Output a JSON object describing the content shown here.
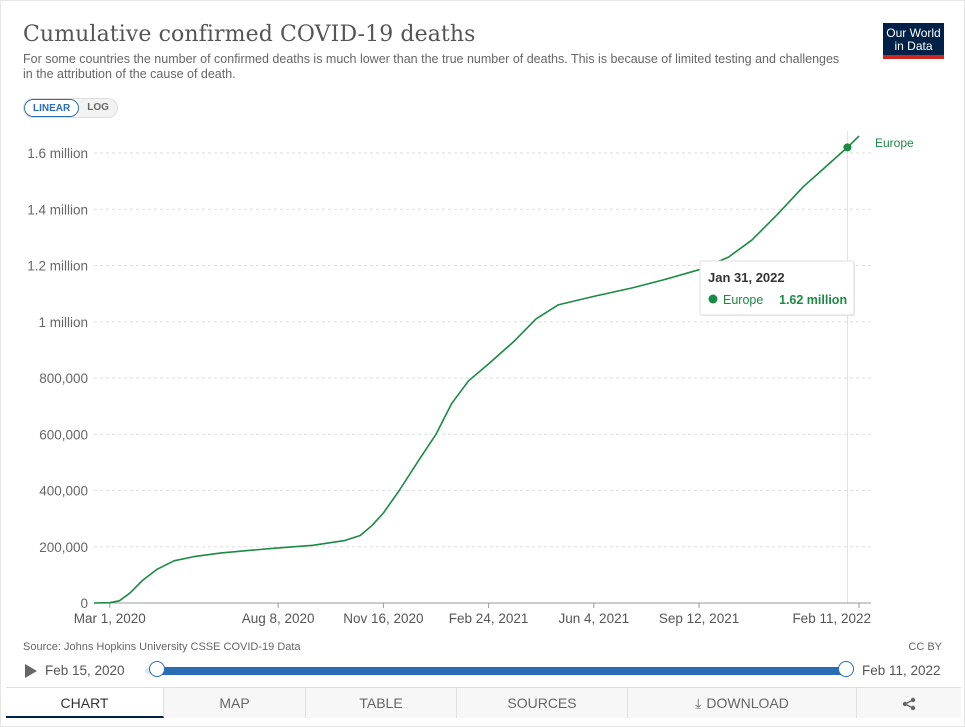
{
  "header": {
    "title": "Cumulative confirmed COVID-19 deaths",
    "subtitle": "For some countries the number of confirmed deaths is much lower than the true number of deaths. This is because of limited testing and challenges in the attribution of the cause of death.",
    "logo_line1": "Our World",
    "logo_line2": "in Data"
  },
  "controls": {
    "linear_label": "LINEAR",
    "log_label": "LOG"
  },
  "chart_data": {
    "type": "line",
    "title": "Cumulative confirmed COVID-19 deaths",
    "ylim": [
      0,
      1650000
    ],
    "y_ticks": [
      0,
      200000,
      400000,
      600000,
      800000,
      1000000,
      1200000,
      1400000,
      1600000
    ],
    "y_tick_labels": [
      "0",
      "200,000",
      "400,000",
      "600,000",
      "800,000",
      "1 million",
      "1.2 million",
      "1.4 million",
      "1.6 million"
    ],
    "x_range": [
      "2020-02-15",
      "2022-02-11"
    ],
    "x_ticks": [
      "2020-03-01",
      "2020-08-08",
      "2020-11-16",
      "2021-02-24",
      "2021-06-04",
      "2021-09-12",
      "2022-02-11"
    ],
    "x_tick_labels": [
      "Mar 1, 2020",
      "Aug 8, 2020",
      "Nov 16, 2020",
      "Feb 24, 2021",
      "Jun 4, 2021",
      "Sep 12, 2021",
      "Feb 11, 2022"
    ],
    "grid": "horizontal-dashed",
    "series": [
      {
        "name": "Europe",
        "color": "#1a8a44",
        "points": [
          [
            "2020-02-15",
            0
          ],
          [
            "2020-03-01",
            1000
          ],
          [
            "2020-03-10",
            8000
          ],
          [
            "2020-03-20",
            35000
          ],
          [
            "2020-04-01",
            80000
          ],
          [
            "2020-04-15",
            120000
          ],
          [
            "2020-05-01",
            150000
          ],
          [
            "2020-05-20",
            165000
          ],
          [
            "2020-06-15",
            178000
          ],
          [
            "2020-07-15",
            188000
          ],
          [
            "2020-08-08",
            196000
          ],
          [
            "2020-09-10",
            205000
          ],
          [
            "2020-10-10",
            222000
          ],
          [
            "2020-10-25",
            240000
          ],
          [
            "2020-11-05",
            275000
          ],
          [
            "2020-11-16",
            320000
          ],
          [
            "2020-12-01",
            400000
          ],
          [
            "2020-12-20",
            510000
          ],
          [
            "2021-01-05",
            600000
          ],
          [
            "2021-01-20",
            710000
          ],
          [
            "2021-02-05",
            790000
          ],
          [
            "2021-02-24",
            850000
          ],
          [
            "2021-03-20",
            930000
          ],
          [
            "2021-04-10",
            1010000
          ],
          [
            "2021-05-01",
            1060000
          ],
          [
            "2021-06-04",
            1090000
          ],
          [
            "2021-07-10",
            1120000
          ],
          [
            "2021-08-10",
            1150000
          ],
          [
            "2021-09-12",
            1185000
          ],
          [
            "2021-10-10",
            1230000
          ],
          [
            "2021-11-01",
            1290000
          ],
          [
            "2021-11-25",
            1380000
          ],
          [
            "2021-12-20",
            1480000
          ],
          [
            "2022-01-10",
            1550000
          ],
          [
            "2022-01-31",
            1620000
          ],
          [
            "2022-02-11",
            1660000
          ]
        ]
      }
    ],
    "end_label": "Europe",
    "tooltip": {
      "date": "Jan 31, 2022",
      "series": "Europe",
      "value": "1.62 million",
      "x": "2022-01-31",
      "y": 1620000
    }
  },
  "footer": {
    "source": "Source: Johns Hopkins University CSSE COVID-19 Data",
    "license": "CC BY"
  },
  "timeline": {
    "start_label": "Feb 15, 2020",
    "end_label": "Feb 11, 2022",
    "start_fraction": 0.0,
    "end_fraction": 1.0
  },
  "tabs": [
    {
      "label": "CHART",
      "active": true
    },
    {
      "label": "MAP",
      "active": false
    },
    {
      "label": "TABLE",
      "active": false
    },
    {
      "label": "SOURCES",
      "active": false
    },
    {
      "label": "DOWNLOAD",
      "active": false
    },
    {
      "label": "",
      "active": false
    }
  ]
}
